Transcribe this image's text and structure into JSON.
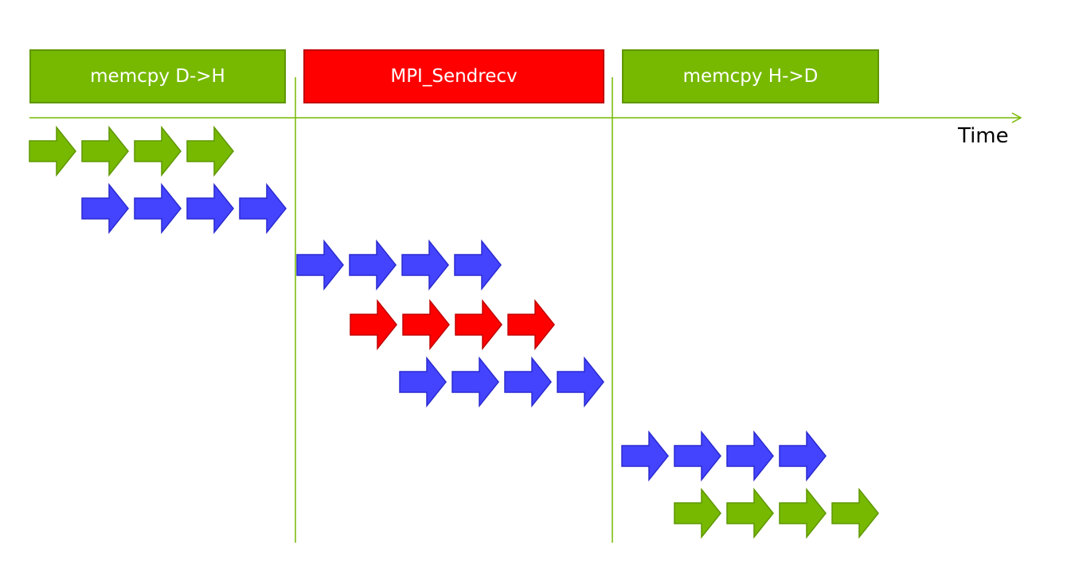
{
  "phases": [
    {
      "label": "memcpy D->H",
      "fill": "#76b900",
      "border": "#5f9700"
    },
    {
      "label": "MPI_Sendrecv",
      "fill": "#ff0000",
      "border": "#c00000"
    },
    {
      "label": "memcpy H->D",
      "fill": "#76b900",
      "border": "#5f9700"
    }
  ],
  "axis": {
    "label": "Time",
    "color": "#76b900"
  },
  "arrow_colors": {
    "green": {
      "fill": "#76b900",
      "stroke": "#5f9700"
    },
    "blue": {
      "fill": "#4444ff",
      "stroke": "#2a2ad0"
    },
    "red": {
      "fill": "#ff0000",
      "stroke": "#c00000"
    }
  },
  "arrow_rows": [
    {
      "color": "green",
      "count": 4
    },
    {
      "color": "blue",
      "count": 4
    },
    {
      "color": "blue",
      "count": 4
    },
    {
      "color": "red",
      "count": 4
    },
    {
      "color": "blue",
      "count": 4
    },
    {
      "color": "blue",
      "count": 4
    },
    {
      "color": "green",
      "count": 4
    }
  ]
}
